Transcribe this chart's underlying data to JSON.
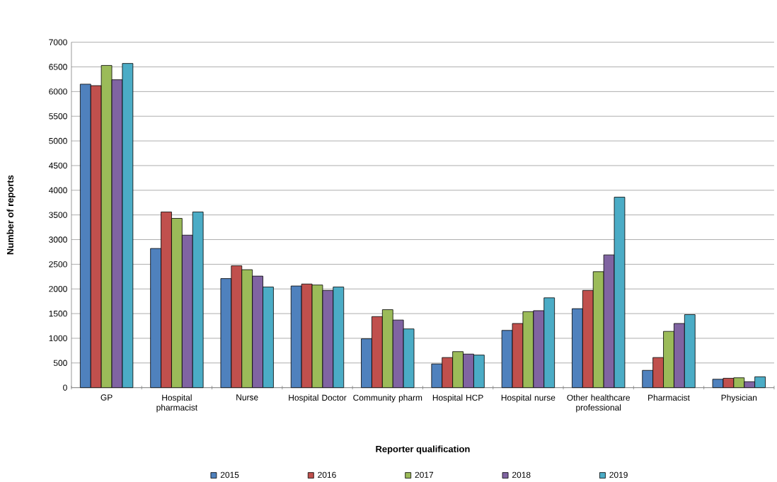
{
  "chart_data": {
    "type": "bar",
    "xlabel": "Reporter qualification",
    "ylabel": "Number of reports",
    "categories": [
      "GP",
      "Hospital pharmacist",
      "Nurse",
      "Hospital Doctor",
      "Community pharm",
      "Hospital HCP",
      "Hospital nurse",
      "Other healthcare professional",
      "Pharmacist",
      "Physician"
    ],
    "series": [
      {
        "name": "2015",
        "color": "#4f81bd",
        "values": [
          6150,
          2820,
          2210,
          2060,
          990,
          480,
          1160,
          1600,
          350,
          170
        ]
      },
      {
        "name": "2016",
        "color": "#c0504d",
        "values": [
          6120,
          3560,
          2470,
          2100,
          1440,
          610,
          1300,
          1970,
          610,
          190
        ]
      },
      {
        "name": "2017",
        "color": "#9bbb59",
        "values": [
          6530,
          3430,
          2390,
          2080,
          1580,
          730,
          1540,
          2350,
          1140,
          200
        ]
      },
      {
        "name": "2018",
        "color": "#8064a2",
        "values": [
          6240,
          3090,
          2260,
          1970,
          1370,
          680,
          1560,
          2690,
          1300,
          120
        ]
      },
      {
        "name": "2019",
        "color": "#4bacc6",
        "values": [
          6570,
          3560,
          2040,
          2040,
          1190,
          660,
          1820,
          3860,
          1480,
          220
        ]
      }
    ],
    "ylim": [
      0,
      7000
    ],
    "yticks": [
      0,
      500,
      1000,
      1500,
      2000,
      2500,
      3000,
      3500,
      4000,
      4500,
      5000,
      5500,
      6000,
      6500,
      7000
    ],
    "grid": "y",
    "legend": "bottom"
  }
}
